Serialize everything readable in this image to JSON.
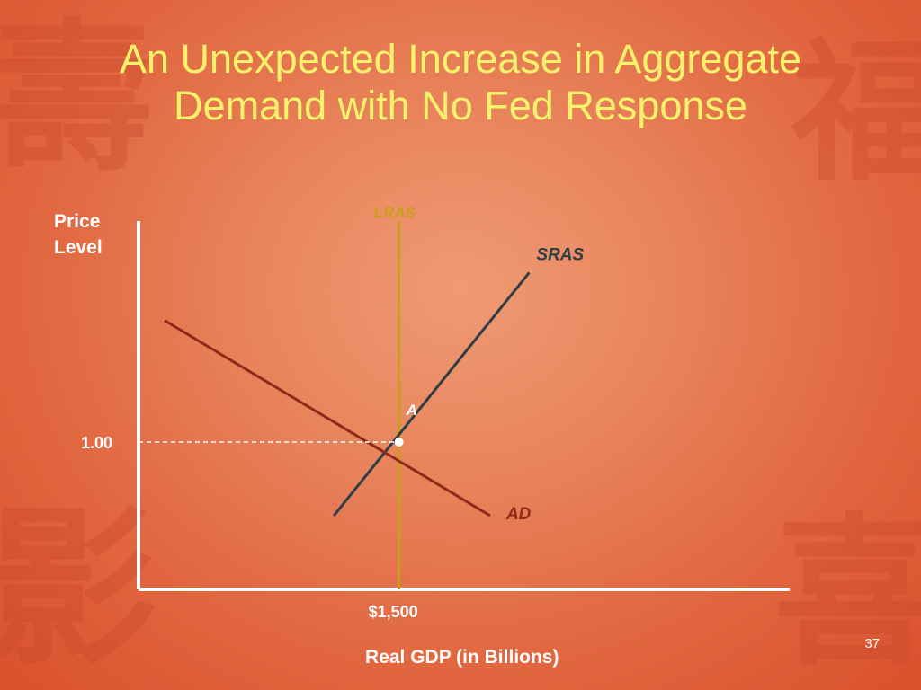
{
  "slide": {
    "title": "An Unexpected Increase in Aggregate\nDemand with No Fed Response",
    "page_number": "37"
  },
  "colors": {
    "title": "#f6f26b",
    "axis": "#ffffff",
    "lras": "#c8a018",
    "sras": "#2f3f45",
    "ad": "#8e2a1a",
    "text": "#ffffff"
  },
  "chart_data": {
    "type": "line",
    "ylabel": "Price\nLevel",
    "xlabel": "Real GDP (in Billions)",
    "x_ticks": [
      {
        "value": 1500,
        "label": "$1,500"
      }
    ],
    "y_ticks": [
      {
        "value": 1.0,
        "label": "1.00"
      }
    ],
    "xlim": [
      500,
      3000
    ],
    "ylim": [
      0.6,
      1.6
    ],
    "grid": false,
    "series": [
      {
        "name": "LRAS",
        "color": "#c8a018",
        "points": [
          [
            1500,
            0.6
          ],
          [
            1500,
            1.6
          ]
        ]
      },
      {
        "name": "SRAS",
        "color": "#2f3f45",
        "points": [
          [
            1250,
            0.8
          ],
          [
            2000,
            1.46
          ]
        ]
      },
      {
        "name": "AD",
        "color": "#8e2a1a",
        "points": [
          [
            600,
            1.33
          ],
          [
            1850,
            0.8
          ]
        ]
      }
    ],
    "points": [
      {
        "label": "A",
        "x": 1500,
        "y": 1.0
      }
    ]
  }
}
